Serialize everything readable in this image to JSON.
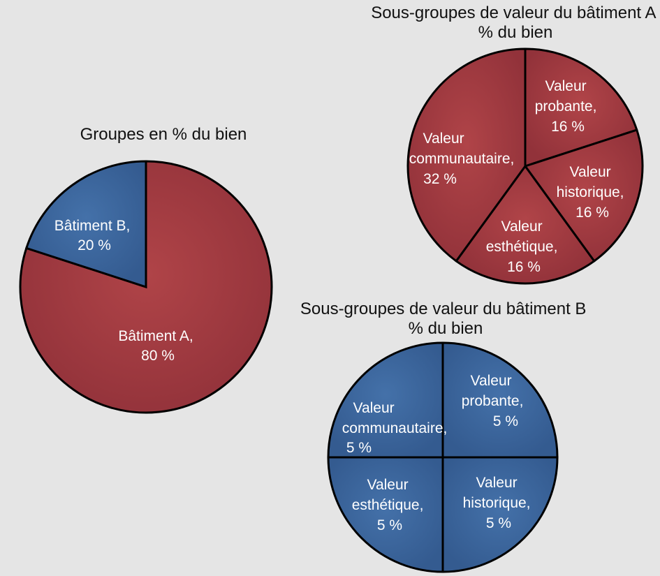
{
  "chart_data": [
    {
      "type": "pie",
      "title": "Groupes en % du bien",
      "slices": [
        {
          "name": "Bâtiment A",
          "value": 80,
          "label_lines": [
            "Bâtiment A,",
            "80 %"
          ],
          "color": "#a23a3d"
        },
        {
          "name": "Bâtiment B",
          "value": 20,
          "label_lines": [
            "Bâtiment B,",
            "20 %"
          ],
          "color": "#3e68a0"
        }
      ]
    },
    {
      "type": "pie",
      "title_lines": [
        "Sous-groupes de valeur du bâtiment A",
        "% du bien"
      ],
      "slices": [
        {
          "name": "Valeur probante",
          "value": 16,
          "label_lines": [
            "Valeur",
            "probante,",
            "16 %"
          ],
          "color": "#a23a3d"
        },
        {
          "name": "Valeur historique",
          "value": 16,
          "label_lines": [
            "Valeur",
            "historique,",
            "16 %"
          ],
          "color": "#a23a3d"
        },
        {
          "name": "Valeur esthétique",
          "value": 16,
          "label_lines": [
            "Valeur",
            "esthétique,",
            "16 %"
          ],
          "color": "#a23a3d"
        },
        {
          "name": "Valeur communautaire",
          "value": 32,
          "label_lines": [
            "Valeur",
            "communautaire,",
            "32 %"
          ],
          "color": "#a23a3d"
        }
      ]
    },
    {
      "type": "pie",
      "title_lines": [
        "Sous-groupes de valeur du bâtiment B",
        "% du bien"
      ],
      "slices": [
        {
          "name": "Valeur probante",
          "value": 5,
          "label_lines": [
            "Valeur",
            "probante,",
            "5 %"
          ],
          "color": "#3e68a0"
        },
        {
          "name": "Valeur historique",
          "value": 5,
          "label_lines": [
            "Valeur",
            "historique,",
            "5 %"
          ],
          "color": "#3e68a0"
        },
        {
          "name": "Valeur esthétique",
          "value": 5,
          "label_lines": [
            "Valeur",
            "esthétique,",
            "5 %"
          ],
          "color": "#3e68a0"
        },
        {
          "name": "Valeur communautaire",
          "value": 5,
          "label_lines": [
            "Valeur",
            "communautaire,",
            "5 %"
          ],
          "color": "#3e68a0"
        }
      ]
    }
  ]
}
